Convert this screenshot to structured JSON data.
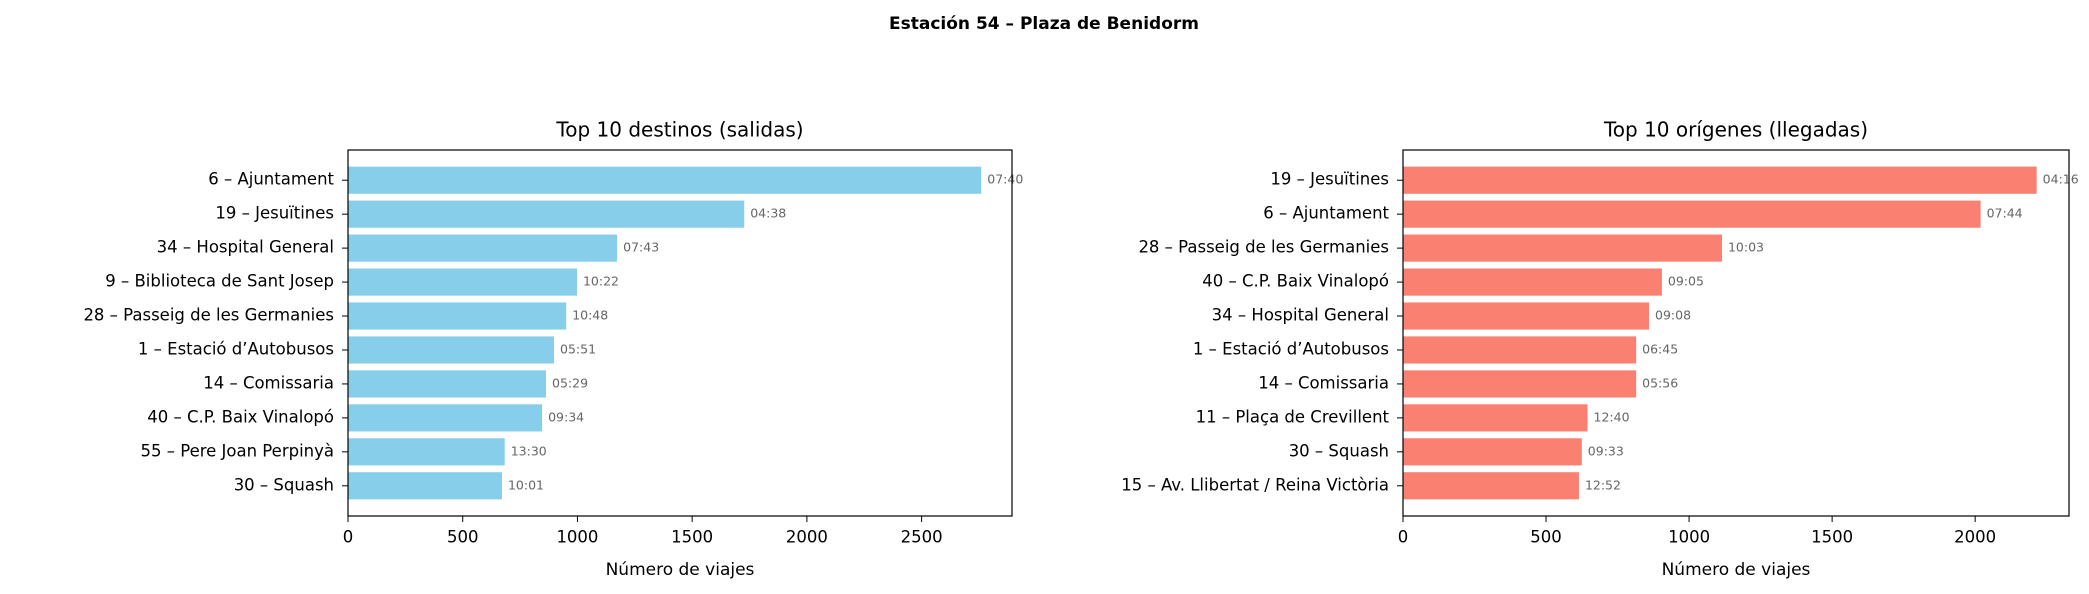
{
  "figure_title": "Estación 54 – Plaza de Benidorm",
  "chart_data": [
    {
      "type": "barh",
      "title": "Top 10 destinos (salidas)",
      "x_label": "Número de viajes",
      "color": "#87ceeb",
      "categories": [
        "6 – Ajuntament",
        "19 – Jesuïtines",
        "34 – Hospital General",
        "9 – Biblioteca de Sant Josep",
        "28 – Passeig de les Germanies",
        "1 – Estació d’Autobusos",
        "14 – Comissaria",
        "40 – C.P. Baix Vinalopó",
        "55 – Pere Joan Perpinyà",
        "30 – Squash"
      ],
      "values": [
        2760,
        1727,
        1173,
        998,
        951,
        898,
        863,
        846,
        683,
        671
      ],
      "annotations": [
        "07:40",
        "04:38",
        "07:43",
        "10:22",
        "10:48",
        "05:51",
        "05:29",
        "09:34",
        "13:30",
        "10:01"
      ],
      "xlim": [
        0,
        2894
      ],
      "xticks": [
        0,
        500,
        1000,
        1500,
        2000,
        2500
      ]
    },
    {
      "type": "barh",
      "title": "Top 10 orígenes (llegadas)",
      "x_label": "Número de viajes",
      "color": "#fa8072",
      "categories": [
        "19 – Jesuïtines",
        "6 – Ajuntament",
        "28 – Passeig de les Germanies",
        "40 – C.P. Baix Vinalopó",
        "34 – Hospital General",
        "1 – Estació d’Autobusos",
        "14 – Comissaria",
        "11 – Plaça de Crevillent",
        "30 – Squash",
        "15 – Av. Llibertat / Reina Victòria"
      ],
      "values": [
        2215,
        2019,
        1115,
        905,
        860,
        815,
        815,
        645,
        625,
        615
      ],
      "annotations": [
        "04:16",
        "07:44",
        "10:03",
        "09:05",
        "09:08",
        "06:45",
        "05:56",
        "12:40",
        "09:33",
        "12:52"
      ],
      "xlim": [
        0,
        2328
      ],
      "xticks": [
        0,
        500,
        1000,
        1500,
        2000
      ]
    }
  ]
}
